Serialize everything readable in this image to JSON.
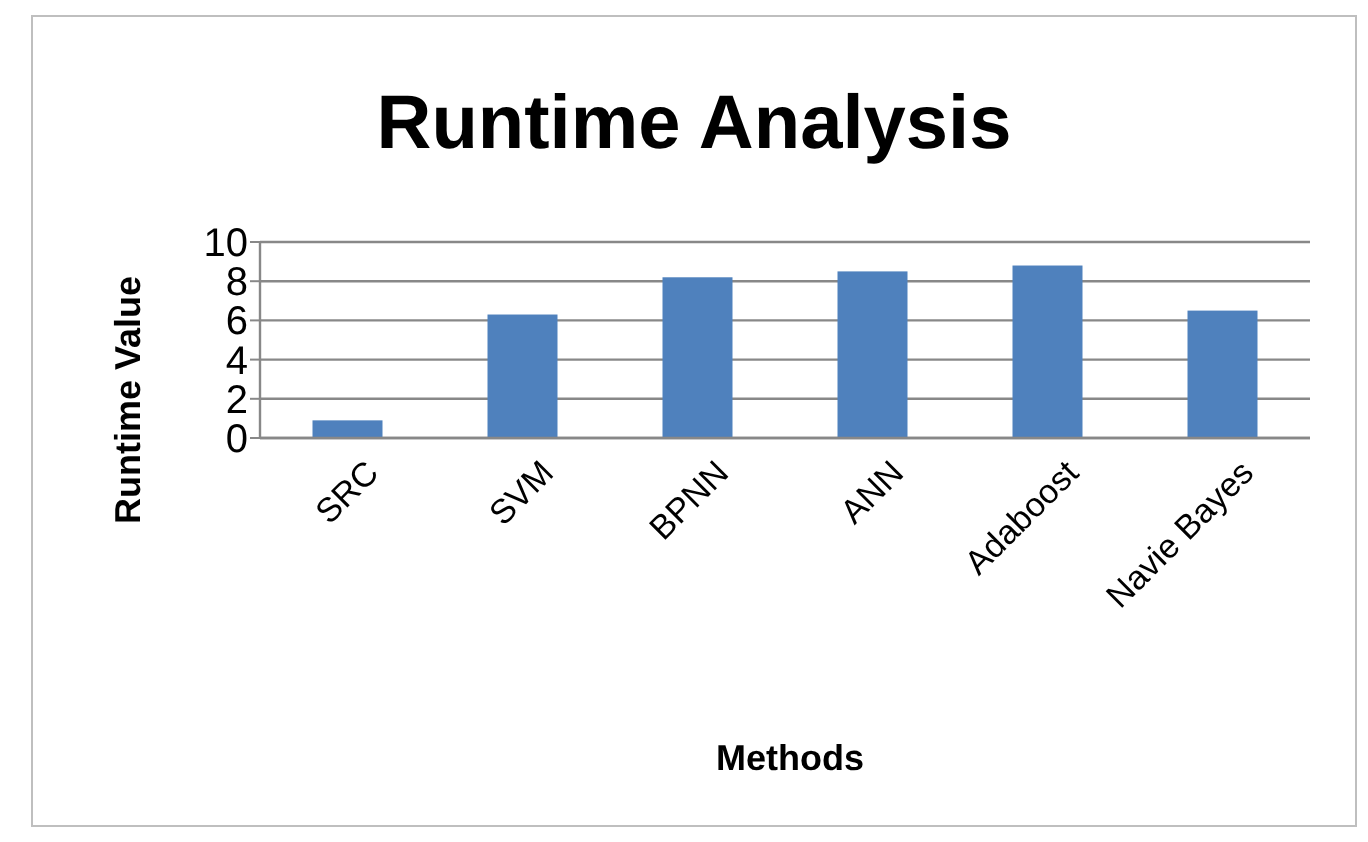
{
  "chart_data": {
    "type": "bar",
    "title": "Runtime Analysis",
    "xlabel": "Methods",
    "ylabel": "Runtime Value",
    "categories": [
      "SRC",
      "SVM",
      "BPNN",
      "ANN",
      "Adaboost",
      "Navie Bayes"
    ],
    "values": [
      0.9,
      6.3,
      8.2,
      8.5,
      8.8,
      6.5
    ],
    "color": "#4f81bd",
    "ylim": [
      0,
      10
    ],
    "yticks": [
      0,
      2,
      4,
      6,
      8,
      10
    ],
    "grid": "y"
  }
}
